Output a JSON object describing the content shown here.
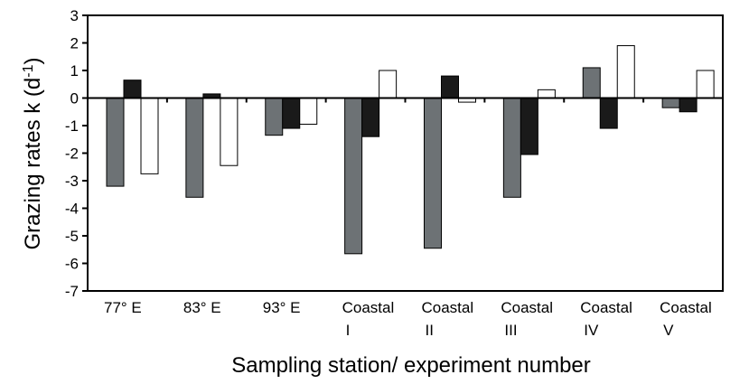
{
  "chart_data": {
    "type": "bar",
    "xlabel": "Sampling station/ experiment number",
    "ylabel": "Grazing rates k (d",
    "ylabel_superscript": "-1",
    "ylabel_close": ")",
    "ylim": [
      -7,
      3
    ],
    "yticks": [
      3,
      2,
      1,
      0,
      -1,
      -2,
      -3,
      -4,
      -5,
      -6,
      -7
    ],
    "categories": [
      {
        "line1": "77° E",
        "line2": ""
      },
      {
        "line1": "83° E",
        "line2": ""
      },
      {
        "line1": "93° E",
        "line2": ""
      },
      {
        "line1": "Coastal",
        "line2": "I"
      },
      {
        "line1": "Coastal",
        "line2": "II"
      },
      {
        "line1": "Coastal",
        "line2": "III"
      },
      {
        "line1": "Coastal",
        "line2": "IV"
      },
      {
        "line1": "Coastal",
        "line2": "V"
      }
    ],
    "series": [
      {
        "color": "#6d7275",
        "values": [
          -3.2,
          -3.6,
          -1.35,
          -5.65,
          -5.45,
          -3.6,
          1.1,
          -0.35
        ]
      },
      {
        "color": "#1a1a1a",
        "values": [
          0.65,
          0.15,
          -1.1,
          -1.4,
          0.8,
          -2.05,
          -1.1,
          -0.5
        ]
      },
      {
        "color": "#ffffff",
        "values": [
          -2.75,
          -2.45,
          -0.95,
          1.0,
          -0.15,
          0.3,
          1.9,
          1.0
        ]
      }
    ],
    "legend": "none",
    "grid": false
  }
}
